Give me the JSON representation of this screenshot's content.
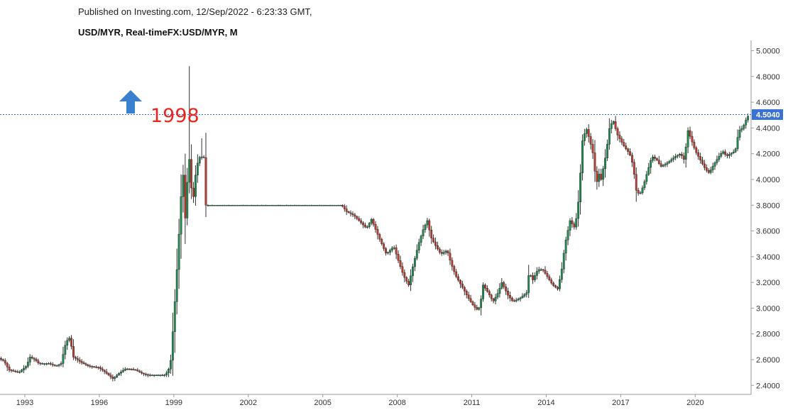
{
  "header": {
    "published": "Published on Investing.com, 12/Sep/2022 - 6:23:33 GMT,",
    "symbol": "USD/MYR, Real-timeFX:USD/MYR, M"
  },
  "chart_data": {
    "type": "candlestick",
    "interval": "monthly",
    "title": "USD/MYR, Real-timeFX:USD/MYR, M",
    "ylim": [
      2.33,
      5.08
    ],
    "xlim": [
      1992.5,
      2022.75
    ],
    "y_ticks": [
      "2.4000",
      "2.6000",
      "2.8000",
      "3.0000",
      "3.2000",
      "3.4000",
      "3.6000",
      "3.8000",
      "4.0000",
      "4.2000",
      "4.4000",
      "4.6000",
      "4.8000",
      "5.0000"
    ],
    "x_ticks": [
      "1993",
      "1996",
      "1999",
      "2002",
      "2005",
      "2008",
      "2011",
      "2014",
      "2017",
      "2020"
    ],
    "last_price": "4.5040",
    "last_price_color": "#3a73d6",
    "up_color": "#1a8c4e",
    "down_color": "#c0392b",
    "grid": false,
    "annotation": {
      "text": "1998",
      "color": "#e8251f",
      "arrow_icon": "arrow-up-icon",
      "arrow_color": "#3a80d0"
    },
    "anchors": [
      [
        1992.5,
        2.61
      ],
      [
        1992.7,
        2.59
      ],
      [
        1992.9,
        2.52
      ],
      [
        1993.3,
        2.5
      ],
      [
        1993.6,
        2.55
      ],
      [
        1993.75,
        2.62
      ],
      [
        1993.95,
        2.6
      ],
      [
        1994.1,
        2.57
      ],
      [
        1994.5,
        2.57
      ],
      [
        1994.8,
        2.55
      ],
      [
        1995.0,
        2.57
      ],
      [
        1995.2,
        2.74
      ],
      [
        1995.35,
        2.77
      ],
      [
        1995.5,
        2.62
      ],
      [
        1995.8,
        2.58
      ],
      [
        1996.1,
        2.55
      ],
      [
        1996.5,
        2.54
      ],
      [
        1996.8,
        2.5
      ],
      [
        1997.1,
        2.45
      ],
      [
        1997.3,
        2.49
      ],
      [
        1997.6,
        2.53
      ],
      [
        1998.0,
        2.52
      ],
      [
        1998.3,
        2.49
      ],
      [
        1998.5,
        2.48
      ],
      [
        1998.7,
        2.48
      ],
      [
        1999.2,
        2.48
      ],
      [
        1999.4,
        2.55
      ],
      [
        1999.55,
        2.95
      ],
      [
        1999.7,
        3.4
      ],
      [
        1999.8,
        3.75
      ],
      [
        1999.9,
        4.1
      ],
      [
        2000.0,
        3.7
      ],
      [
        2000.15,
        4.2
      ],
      [
        2000.3,
        3.8
      ],
      [
        2000.45,
        4.1
      ],
      [
        2000.6,
        4.18
      ],
      [
        2000.75,
        4.17
      ],
      [
        2000.8,
        3.8
      ],
      [
        2006.3,
        3.8
      ],
      [
        2006.5,
        3.75
      ],
      [
        2006.8,
        3.72
      ],
      [
        2007.0,
        3.68
      ],
      [
        2007.3,
        3.62
      ],
      [
        2007.5,
        3.69
      ],
      [
        2007.8,
        3.55
      ],
      [
        2008.1,
        3.42
      ],
      [
        2008.4,
        3.48
      ],
      [
        2008.6,
        3.36
      ],
      [
        2008.8,
        3.25
      ],
      [
        2009.0,
        3.18
      ],
      [
        2009.2,
        3.35
      ],
      [
        2009.4,
        3.5
      ],
      [
        2009.6,
        3.62
      ],
      [
        2009.75,
        3.68
      ],
      [
        2009.9,
        3.55
      ],
      [
        2010.1,
        3.48
      ],
      [
        2010.3,
        3.42
      ],
      [
        2010.55,
        3.45
      ],
      [
        2010.7,
        3.35
      ],
      [
        2010.9,
        3.25
      ],
      [
        2011.2,
        3.15
      ],
      [
        2011.4,
        3.08
      ],
      [
        2011.6,
        3.02
      ],
      [
        2011.8,
        2.98
      ],
      [
        2011.9,
        3.05
      ],
      [
        2012.0,
        3.18
      ],
      [
        2012.2,
        3.12
      ],
      [
        2012.4,
        3.05
      ],
      [
        2012.6,
        3.12
      ],
      [
        2012.75,
        3.2
      ],
      [
        2013.0,
        3.1
      ],
      [
        2013.2,
        3.05
      ],
      [
        2013.5,
        3.08
      ],
      [
        2013.75,
        3.12
      ],
      [
        2013.85,
        3.28
      ],
      [
        2014.0,
        3.22
      ],
      [
        2014.2,
        3.3
      ],
      [
        2014.4,
        3.3
      ],
      [
        2014.6,
        3.24
      ],
      [
        2014.8,
        3.18
      ],
      [
        2015.0,
        3.15
      ],
      [
        2015.15,
        3.28
      ],
      [
        2015.3,
        3.5
      ],
      [
        2015.5,
        3.68
      ],
      [
        2015.7,
        3.62
      ],
      [
        2015.85,
        3.85
      ],
      [
        2016.0,
        4.3
      ],
      [
        2016.15,
        4.4
      ],
      [
        2016.3,
        4.3
      ],
      [
        2016.45,
        4.18
      ],
      [
        2016.55,
        3.95
      ],
      [
        2016.65,
        4.05
      ],
      [
        2016.75,
        4.0
      ],
      [
        2016.85,
        4.1
      ],
      [
        2016.95,
        4.2
      ],
      [
        2017.1,
        4.42
      ],
      [
        2017.25,
        4.45
      ],
      [
        2017.4,
        4.35
      ],
      [
        2017.55,
        4.3
      ],
      [
        2017.7,
        4.25
      ],
      [
        2017.9,
        4.2
      ],
      [
        2018.05,
        4.1
      ],
      [
        2018.15,
        3.92
      ],
      [
        2018.3,
        3.88
      ],
      [
        2018.45,
        3.95
      ],
      [
        2018.6,
        4.05
      ],
      [
        2018.8,
        4.18
      ],
      [
        2019.0,
        4.15
      ],
      [
        2019.15,
        4.1
      ],
      [
        2019.35,
        4.12
      ],
      [
        2019.55,
        4.15
      ],
      [
        2019.75,
        4.18
      ],
      [
        2019.95,
        4.2
      ],
      [
        2020.1,
        4.15
      ],
      [
        2020.25,
        4.38
      ],
      [
        2020.4,
        4.3
      ],
      [
        2020.55,
        4.22
      ],
      [
        2020.75,
        4.15
      ],
      [
        2020.95,
        4.08
      ],
      [
        2021.1,
        4.05
      ],
      [
        2021.3,
        4.12
      ],
      [
        2021.5,
        4.18
      ],
      [
        2021.65,
        4.22
      ],
      [
        2021.8,
        4.18
      ],
      [
        2021.95,
        4.2
      ],
      [
        2022.15,
        4.22
      ],
      [
        2022.3,
        4.38
      ],
      [
        2022.45,
        4.4
      ],
      [
        2022.6,
        4.47
      ],
      [
        2022.7,
        4.5
      ]
    ],
    "spikes": [
      [
        2000.1,
        4.88
      ],
      [
        2000.55,
        4.32
      ]
    ]
  }
}
